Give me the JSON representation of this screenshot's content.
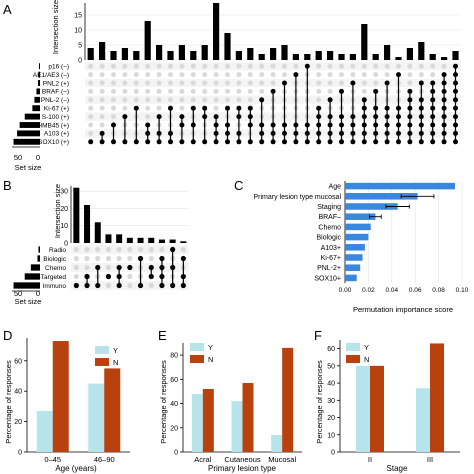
{
  "panels": {
    "A": {
      "letter": "A",
      "ylabel": "Intersection size",
      "yticks": [
        0,
        5,
        10,
        15
      ],
      "set_size_label": "Set size",
      "set_size_ticks": [
        "50",
        "0"
      ],
      "sets": [
        "p16 (–)",
        "AE1/AE3 (–)",
        "PNL2 (+)",
        "BRAF (–)",
        "PNL-2 (–)",
        "Ki-67 (+)",
        "S-100 (+)",
        "HMB45 (+)",
        "A103 (+)",
        "SOX10 (+)"
      ]
    },
    "B": {
      "letter": "B",
      "ylabel": "Intersection size",
      "yticks": [
        0,
        10,
        20,
        30
      ],
      "set_size_label": "Set size",
      "set_size_ticks": [
        "50",
        "0"
      ],
      "sets": [
        "Radio",
        "Biologic",
        "Chemo",
        "Targeted",
        "Immuno"
      ]
    },
    "C": {
      "letter": "C",
      "xlabel": "Permutation importance score",
      "xticks": [
        "0.00",
        "0.02",
        "0.04",
        "0.06",
        "0.08",
        "0.10"
      ]
    },
    "D": {
      "letter": "D",
      "ylabel": "Percentage of responses",
      "xlabel": "Age (years)",
      "yticks": [
        0,
        20,
        40,
        60
      ]
    },
    "E": {
      "letter": "E",
      "ylabel": "Percentage of responses",
      "xlabel": "Primary lesion type",
      "yticks": [
        0,
        20,
        40,
        60,
        80
      ]
    },
    "F": {
      "letter": "F",
      "ylabel": "Percentage of responses",
      "xlabel": "Stage",
      "yticks": [
        0,
        10,
        20,
        30,
        40,
        50,
        60
      ]
    }
  },
  "colors": {
    "bar": "#000000",
    "dot_on": "#000000",
    "dot_off": "#d9d9d9",
    "importance": "#3a87e0",
    "Y": "#b7e4ea",
    "N": "#b8410e"
  },
  "chart_data": [
    {
      "panel": "A",
      "type": "bar",
      "variant": "upset",
      "ylabel": "Intersection size",
      "ylim": [
        0,
        19
      ],
      "intersection_sizes": [
        4,
        6,
        3,
        4,
        3,
        13,
        5,
        3,
        5,
        3,
        5,
        19,
        9,
        3,
        4,
        2,
        4,
        5,
        2,
        2,
        3,
        3,
        2,
        2,
        12,
        2,
        5,
        1,
        4,
        6,
        2,
        1,
        3
      ],
      "memberships": [
        [
          9
        ],
        [
          9,
          8
        ],
        [
          9,
          7
        ],
        [
          9,
          6
        ],
        [
          9,
          5
        ],
        [
          9,
          8,
          7
        ],
        [
          9,
          8,
          6
        ],
        [
          9,
          8,
          5
        ],
        [
          9,
          7,
          6
        ],
        [
          9,
          7,
          5
        ],
        [
          9,
          6,
          5
        ],
        [
          9,
          8,
          7,
          6
        ],
        [
          9,
          8,
          7,
          5
        ],
        [
          9,
          8,
          6,
          5
        ],
        [
          9,
          7,
          6,
          5
        ],
        [
          9,
          8,
          7,
          4
        ],
        [
          9,
          8,
          7,
          3
        ],
        [
          9,
          8,
          7,
          2
        ],
        [
          9,
          8,
          7,
          1
        ],
        [
          9,
          8,
          7,
          0
        ],
        [
          9,
          8,
          7,
          6,
          5
        ],
        [
          9,
          8,
          7,
          6,
          4
        ],
        [
          9,
          8,
          7,
          6,
          3
        ],
        [
          9,
          8,
          7,
          6,
          2
        ],
        [
          9,
          8,
          7,
          6,
          5,
          4
        ],
        [
          9,
          8,
          7,
          6,
          5,
          3
        ],
        [
          9,
          8,
          7,
          6,
          5,
          2
        ],
        [
          9,
          8,
          7,
          6,
          5,
          1
        ],
        [
          9,
          8,
          7,
          6,
          5,
          4,
          3
        ],
        [
          9,
          8,
          7,
          6,
          5,
          4,
          2
        ],
        [
          9,
          8,
          7,
          6,
          5,
          4,
          3,
          2
        ],
        [
          9,
          8,
          7,
          6,
          5,
          4,
          3,
          2,
          1
        ],
        [
          9,
          8,
          7,
          6,
          5,
          4,
          3,
          2,
          1,
          0
        ]
      ],
      "set_sizes": [
        2,
        3,
        4,
        7,
        11,
        15,
        30,
        40,
        45,
        52
      ],
      "set_xlim": [
        0,
        55
      ],
      "grid": true
    },
    {
      "panel": "B",
      "type": "bar",
      "variant": "upset",
      "ylabel": "Intersection size",
      "ylim": [
        0,
        33
      ],
      "intersection_sizes": [
        32,
        22,
        12,
        5,
        5,
        3,
        3,
        3,
        2,
        2,
        1
      ],
      "memberships": [
        [
          4
        ],
        [
          4,
          3
        ],
        [
          4,
          2
        ],
        [
          3
        ],
        [
          4,
          3,
          2
        ],
        [
          2
        ],
        [
          4,
          1
        ],
        [
          3,
          2
        ],
        [
          4,
          3,
          2,
          1
        ],
        [
          4,
          2,
          0
        ],
        [
          4,
          3,
          1
        ]
      ],
      "set_sizes": [
        3,
        5,
        18,
        30,
        52
      ],
      "set_xlim": [
        0,
        55
      ],
      "grid": true
    },
    {
      "panel": "C",
      "type": "bar",
      "orientation": "horizontal",
      "categories": [
        "Age",
        "Primary lesion type mucosal",
        "Staging",
        "BRAF–",
        "Chemo",
        "Biologic",
        "A103+",
        "Ki-67+",
        "PNL-2+",
        "SOX10+"
      ],
      "values": [
        0.094,
        0.062,
        0.045,
        0.026,
        0.022,
        0.02,
        0.017,
        0.015,
        0.013,
        0.01
      ],
      "errors": [
        0.0,
        0.014,
        0.01,
        0.005,
        0.0,
        0.0,
        0.0,
        0.0,
        0.0,
        0.0
      ],
      "xlabel": "Permutation importance score",
      "xlim": [
        0,
        0.1
      ],
      "grid": true
    },
    {
      "panel": "D",
      "type": "bar",
      "categories": [
        "0–45",
        "46–90"
      ],
      "series": [
        {
          "name": "Y",
          "values": [
            27,
            45
          ]
        },
        {
          "name": "N",
          "values": [
            73,
            55
          ]
        }
      ],
      "xlabel": "Age (years)",
      "ylabel": "Percentage of responses",
      "ylim": [
        0,
        75
      ],
      "legend": "top-right"
    },
    {
      "panel": "E",
      "type": "bar",
      "categories": [
        "Acral",
        "Cutaneous",
        "Mucosal"
      ],
      "series": [
        {
          "name": "Y",
          "values": [
            48,
            42,
            14
          ]
        },
        {
          "name": "N",
          "values": [
            52,
            57,
            86
          ]
        }
      ],
      "xlabel": "Primary lesion type",
      "ylabel": "Percentage of responses",
      "ylim": [
        0,
        90
      ],
      "legend": "top-left"
    },
    {
      "panel": "F",
      "type": "bar",
      "categories": [
        "II",
        "III"
      ],
      "series": [
        {
          "name": "Y",
          "values": [
            50,
            37
          ]
        },
        {
          "name": "N",
          "values": [
            50,
            63
          ]
        }
      ],
      "xlabel": "Stage",
      "ylabel": "Percentage of responses",
      "ylim": [
        0,
        65
      ],
      "legend": "top-left"
    }
  ]
}
